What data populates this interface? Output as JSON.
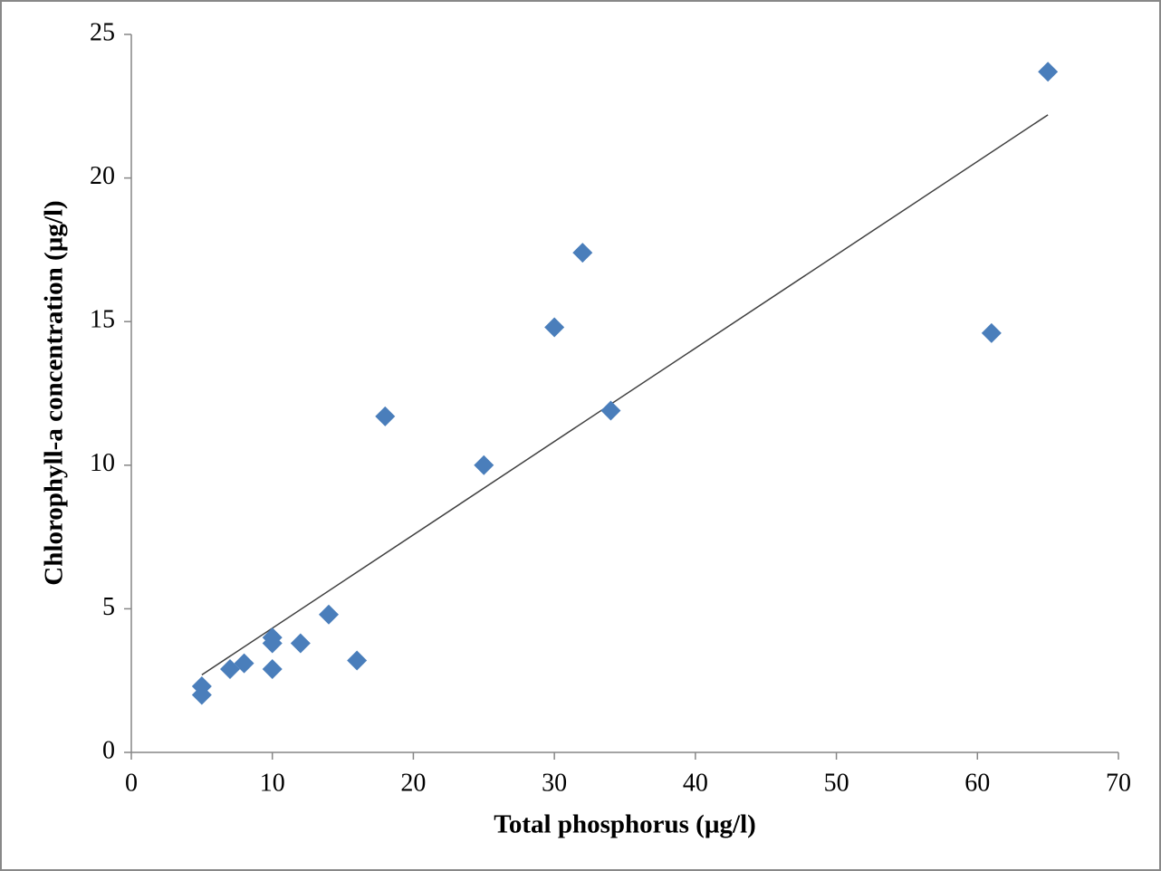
{
  "chart_data": {
    "type": "scatter",
    "x_label": "Total phosphorus (µg/l)",
    "y_label": "Chlorophyll-a concentration (µg/l)",
    "series": [
      {
        "color": "#4a7ebb",
        "x": [
          5,
          5,
          7,
          8,
          10,
          10,
          10,
          12,
          14,
          16,
          18,
          25,
          30,
          32,
          34,
          61,
          65
        ],
        "values": [
          2.0,
          2.3,
          2.9,
          3.1,
          4.0,
          3.8,
          2.9,
          3.8,
          4.8,
          3.2,
          11.7,
          10.0,
          14.8,
          17.4,
          11.9,
          14.6,
          23.7
        ]
      }
    ],
    "trendline": {
      "color": "#404040",
      "x": [
        5,
        65
      ],
      "values": [
        2.7,
        22.2
      ]
    },
    "xlim": [
      0,
      70
    ],
    "xticks": [
      0,
      10,
      20,
      30,
      40,
      50,
      60,
      70
    ],
    "ylim": [
      0,
      25
    ],
    "yticks": [
      0,
      5,
      10,
      15,
      20,
      25
    ]
  }
}
